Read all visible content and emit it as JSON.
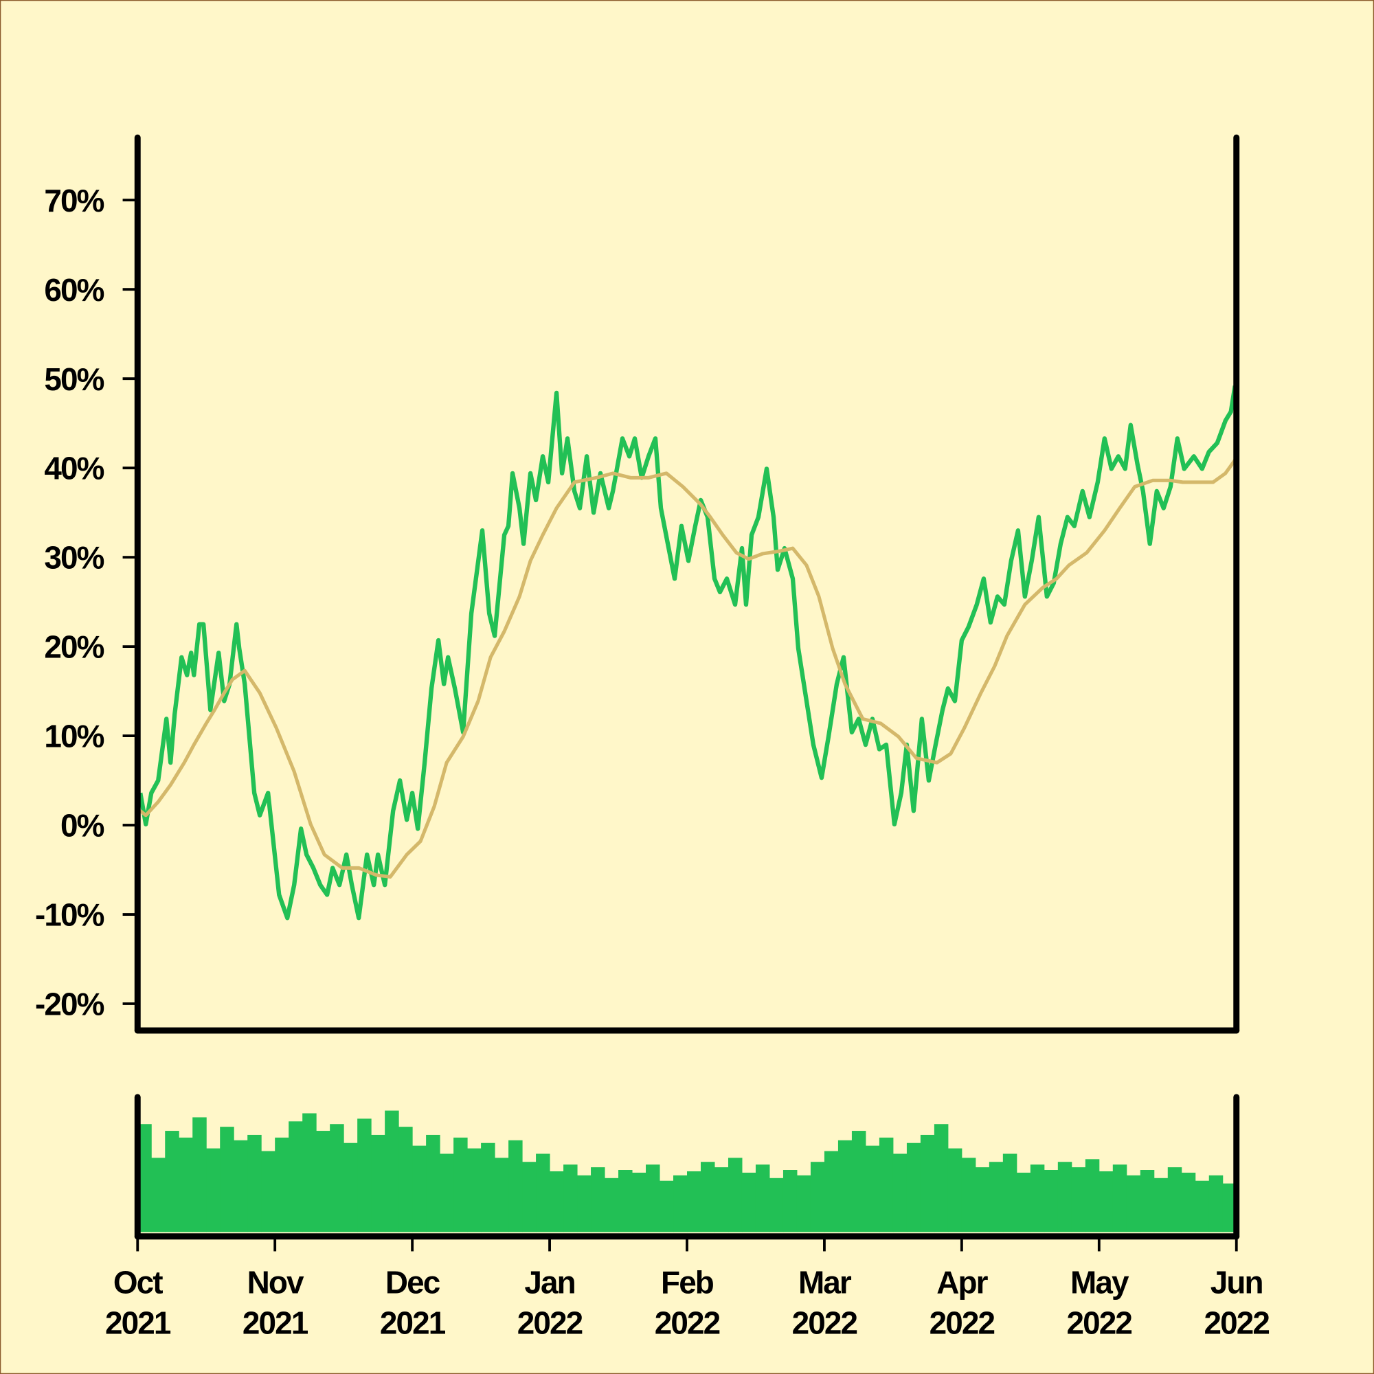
{
  "chart_data": [
    {
      "type": "line",
      "xlim": [
        0,
        8
      ],
      "ylim": [
        -23,
        77
      ],
      "yticks": [
        {
          "value": -20,
          "label": "-20%"
        },
        {
          "value": -10,
          "label": "-10%"
        },
        {
          "value": 0,
          "label": "0%"
        },
        {
          "value": 10,
          "label": "10%"
        },
        {
          "value": 20,
          "label": "20%"
        },
        {
          "value": 30,
          "label": "30%"
        },
        {
          "value": 40,
          "label": "40%"
        },
        {
          "value": 50,
          "label": "50%"
        },
        {
          "value": 60,
          "label": "60%"
        },
        {
          "value": 70,
          "label": "70%"
        }
      ],
      "series": [
        {
          "color": "#22c055",
          "x": [
            0.02,
            0.06,
            0.1,
            0.15,
            0.21,
            0.24,
            0.27,
            0.32,
            0.36,
            0.39,
            0.41,
            0.45,
            0.48,
            0.53,
            0.59,
            0.63,
            0.67,
            0.72,
            0.74,
            0.78,
            0.85,
            0.89,
            0.95,
            1.03,
            1.09,
            1.14,
            1.19,
            1.23,
            1.28,
            1.33,
            1.38,
            1.42,
            1.47,
            1.52,
            1.56,
            1.61,
            1.67,
            1.72,
            1.75,
            1.8,
            1.86,
            1.91,
            1.96,
            2.0,
            2.04,
            2.09,
            2.14,
            2.19,
            2.23,
            2.26,
            2.31,
            2.37,
            2.43,
            2.51,
            2.56,
            2.6,
            2.67,
            2.7,
            2.73,
            2.78,
            2.81,
            2.86,
            2.9,
            2.95,
            2.99,
            3.05,
            3.09,
            3.13,
            3.18,
            3.22,
            3.27,
            3.32,
            3.37,
            3.43,
            3.46,
            3.53,
            3.58,
            3.62,
            3.67,
            3.72,
            3.77,
            3.81,
            3.86,
            3.91,
            3.96,
            4.01,
            4.06,
            4.1,
            4.15,
            4.2,
            4.24,
            4.29,
            4.35,
            4.4,
            4.43,
            4.47,
            4.52,
            4.58,
            4.63,
            4.66,
            4.71,
            4.77,
            4.81,
            4.87,
            4.92,
            4.98,
            5.03,
            5.09,
            5.14,
            5.2,
            5.25,
            5.3,
            5.35,
            5.4,
            5.45,
            5.51,
            5.56,
            5.6,
            5.65,
            5.71,
            5.76,
            5.81,
            5.86,
            5.9,
            5.95,
            6.0,
            6.05,
            6.11,
            6.16,
            6.21,
            6.26,
            6.31,
            6.36,
            6.41,
            6.46,
            6.51,
            6.56,
            6.62,
            6.67,
            6.72,
            6.77,
            6.82,
            6.88,
            6.93,
            6.99,
            7.04,
            7.09,
            7.14,
            7.19,
            7.23,
            7.28,
            7.32,
            7.37,
            7.42,
            7.47,
            7.52,
            7.57,
            7.62,
            7.69,
            7.75,
            7.8,
            7.86,
            7.92,
            7.96,
            7.99
          ],
          "values": [
            3.6,
            0.1,
            3.6,
            5.0,
            11.9,
            7.0,
            12.4,
            18.8,
            16.8,
            19.3,
            16.8,
            22.5,
            22.5,
            12.9,
            19.3,
            13.9,
            15.8,
            22.5,
            19.8,
            15.8,
            3.6,
            1.1,
            3.6,
            -7.8,
            -10.4,
            -6.7,
            -0.4,
            -3.3,
            -4.8,
            -6.7,
            -7.8,
            -4.8,
            -6.7,
            -3.3,
            -6.7,
            -10.4,
            -3.3,
            -6.7,
            -3.3,
            -6.7,
            1.6,
            5.0,
            0.6,
            3.6,
            -0.4,
            7.0,
            15.3,
            20.7,
            15.8,
            18.8,
            15.3,
            10.4,
            23.7,
            33.0,
            23.7,
            21.2,
            32.5,
            33.5,
            39.4,
            35.5,
            31.5,
            39.4,
            36.4,
            41.3,
            38.4,
            48.4,
            39.4,
            43.3,
            37.4,
            35.5,
            41.3,
            35.0,
            39.4,
            35.5,
            37.4,
            43.3,
            41.3,
            43.3,
            38.9,
            41.3,
            43.3,
            35.5,
            31.5,
            27.6,
            33.5,
            29.6,
            33.5,
            36.4,
            34.5,
            27.6,
            26.1,
            27.6,
            24.7,
            31.0,
            24.7,
            32.5,
            34.5,
            39.9,
            34.5,
            28.6,
            31.0,
            27.6,
            19.8,
            13.9,
            9.0,
            5.3,
            9.9,
            15.8,
            18.8,
            10.4,
            11.9,
            9.0,
            11.9,
            8.5,
            9.0,
            0.1,
            3.6,
            9.0,
            1.6,
            11.9,
            5.0,
            9.0,
            12.9,
            15.3,
            13.9,
            20.7,
            22.2,
            24.7,
            27.6,
            22.7,
            25.6,
            24.7,
            29.6,
            33.0,
            25.6,
            29.6,
            34.5,
            25.6,
            27.1,
            31.5,
            34.5,
            33.5,
            37.4,
            34.5,
            38.4,
            43.3,
            39.9,
            41.3,
            39.9,
            44.8,
            40.4,
            37.4,
            31.5,
            37.4,
            35.5,
            37.9,
            43.3,
            39.9,
            41.3,
            39.9,
            41.8,
            42.8,
            45.3,
            46.3,
            49.2
          ]
        },
        {
          "color": "#d4b86a",
          "x": [
            0.02,
            0.06,
            0.15,
            0.24,
            0.34,
            0.41,
            0.5,
            0.56,
            0.63,
            0.69,
            0.78,
            0.89,
            1.01,
            1.14,
            1.26,
            1.36,
            1.49,
            1.61,
            1.74,
            1.84,
            1.96,
            2.06,
            2.16,
            2.25,
            2.37,
            2.48,
            2.57,
            2.67,
            2.78,
            2.86,
            2.95,
            3.05,
            3.18,
            3.34,
            3.46,
            3.59,
            3.72,
            3.85,
            3.97,
            4.1,
            4.17,
            4.26,
            4.36,
            4.45,
            4.55,
            4.68,
            4.77,
            4.87,
            4.96,
            5.06,
            5.15,
            5.28,
            5.41,
            5.54,
            5.67,
            5.82,
            5.92,
            6.02,
            6.14,
            6.24,
            6.33,
            6.46,
            6.59,
            6.69,
            6.78,
            6.91,
            7.04,
            7.15,
            7.26,
            7.39,
            7.52,
            7.61,
            7.74,
            7.83,
            7.92,
            7.99
          ],
          "values": [
            1.6,
            1.1,
            2.6,
            4.5,
            7.0,
            9.0,
            11.4,
            12.9,
            14.8,
            16.3,
            17.3,
            14.8,
            10.9,
            6.0,
            0.1,
            -3.3,
            -4.8,
            -4.8,
            -5.6,
            -5.8,
            -3.3,
            -1.8,
            2.1,
            7.0,
            9.9,
            13.9,
            18.8,
            21.7,
            25.6,
            29.6,
            32.5,
            35.5,
            38.4,
            38.9,
            39.4,
            38.9,
            38.9,
            39.4,
            37.9,
            35.9,
            34.5,
            32.5,
            30.5,
            29.8,
            30.4,
            30.7,
            31.0,
            29.1,
            25.6,
            19.8,
            15.8,
            11.9,
            11.4,
            9.9,
            7.5,
            7.0,
            8.0,
            10.9,
            14.8,
            17.8,
            21.2,
            24.7,
            26.6,
            27.6,
            29.1,
            30.5,
            33.0,
            35.5,
            37.9,
            38.6,
            38.6,
            38.4,
            38.4,
            38.4,
            39.4,
            40.9
          ]
        }
      ]
    },
    {
      "type": "bar",
      "color": "#22c055",
      "xlim": [
        0,
        8
      ],
      "ylim": [
        0,
        100
      ],
      "xticks": [
        {
          "value": 0,
          "label": "Oct 2021"
        },
        {
          "value": 1,
          "label": "Nov 2021"
        },
        {
          "value": 2,
          "label": "Dec 2021"
        },
        {
          "value": 3,
          "label": "Jan 2022"
        },
        {
          "value": 4,
          "label": "Feb 2022"
        },
        {
          "value": 5,
          "label": "Mar 2022"
        },
        {
          "value": 6,
          "label": "Apr 2022"
        },
        {
          "value": 7,
          "label": "May 2022"
        },
        {
          "value": 8,
          "label": "Jun 2022"
        }
      ],
      "x": [
        0.05,
        0.15,
        0.25,
        0.35,
        0.45,
        0.55,
        0.65,
        0.75,
        0.85,
        0.95,
        1.05,
        1.15,
        1.25,
        1.35,
        1.45,
        1.55,
        1.65,
        1.75,
        1.85,
        1.95,
        2.05,
        2.15,
        2.25,
        2.35,
        2.45,
        2.55,
        2.65,
        2.75,
        2.85,
        2.95,
        3.05,
        3.15,
        3.25,
        3.35,
        3.45,
        3.55,
        3.65,
        3.75,
        3.85,
        3.95,
        4.05,
        4.15,
        4.25,
        4.35,
        4.45,
        4.55,
        4.65,
        4.75,
        4.85,
        4.95,
        5.05,
        5.15,
        5.25,
        5.35,
        5.45,
        5.55,
        5.65,
        5.75,
        5.85,
        5.95,
        6.05,
        6.15,
        6.25,
        6.35,
        6.45,
        6.55,
        6.65,
        6.75,
        6.85,
        6.95,
        7.05,
        7.15,
        7.25,
        7.35,
        7.45,
        7.55,
        7.65,
        7.75,
        7.85,
        7.95
      ],
      "values": [
        80,
        55,
        75,
        70,
        85,
        62,
        78,
        68,
        72,
        60,
        70,
        82,
        88,
        75,
        80,
        66,
        84,
        72,
        90,
        78,
        64,
        72,
        58,
        70,
        62,
        66,
        55,
        68,
        52,
        58,
        45,
        50,
        42,
        48,
        40,
        46,
        44,
        50,
        38,
        42,
        45,
        52,
        48,
        55,
        44,
        50,
        40,
        46,
        42,
        52,
        60,
        68,
        75,
        64,
        70,
        58,
        66,
        72,
        80,
        62,
        55,
        48,
        52,
        58,
        44,
        50,
        46,
        52,
        48,
        54,
        45,
        50,
        42,
        46,
        40,
        48,
        44,
        38,
        42,
        36
      ]
    }
  ]
}
